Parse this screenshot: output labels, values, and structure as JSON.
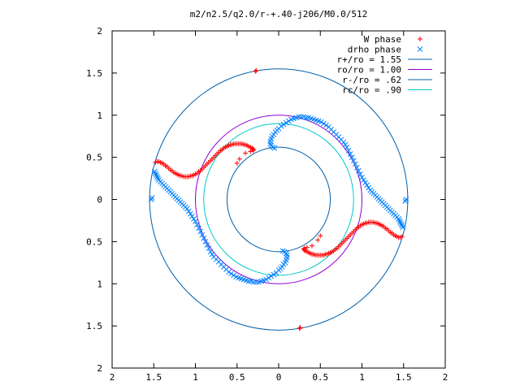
{
  "chart_data": {
    "type": "scatter",
    "title": "m2/n2.5/q2.0/r-+.40-j206/M0.0/512",
    "xlim": [
      -2,
      2
    ],
    "ylim": [
      -2,
      2
    ],
    "xticks": [
      -2,
      -1.5,
      -1,
      -0.5,
      0,
      0.5,
      1,
      1.5,
      2
    ],
    "yticks": [
      -2,
      -1.5,
      -1,
      -0.5,
      0,
      0.5,
      1,
      1.5,
      2
    ],
    "xtick_labels": [
      "2",
      "1.5",
      "1",
      "0.5",
      "0",
      "0.5",
      "1",
      "1.5",
      "2"
    ],
    "ytick_labels": [
      "2",
      "1.5",
      "1",
      "0.5",
      "0",
      "0.5",
      "1",
      "1.5",
      "2"
    ],
    "grid": false,
    "legend_position": "top-right",
    "series": [
      {
        "name": "W phase",
        "kind": "points",
        "marker": "plus",
        "color": "#ff0000",
        "points": [
          [
            -1.48,
            0.44
          ],
          [
            -1.46,
            0.45
          ],
          [
            -1.44,
            0.45
          ],
          [
            -1.42,
            0.44
          ],
          [
            -1.4,
            0.43
          ],
          [
            -1.38,
            0.42
          ],
          [
            -1.36,
            0.4
          ],
          [
            -1.34,
            0.39
          ],
          [
            -1.32,
            0.37
          ],
          [
            -1.3,
            0.35
          ],
          [
            -1.28,
            0.34
          ],
          [
            -1.26,
            0.32
          ],
          [
            -1.24,
            0.31
          ],
          [
            -1.22,
            0.3
          ],
          [
            -1.2,
            0.29
          ],
          [
            -1.18,
            0.28
          ],
          [
            -1.16,
            0.28
          ],
          [
            -1.14,
            0.27
          ],
          [
            -1.12,
            0.27
          ],
          [
            -1.1,
            0.27
          ],
          [
            -1.08,
            0.27
          ],
          [
            -1.06,
            0.28
          ],
          [
            -1.04,
            0.28
          ],
          [
            -1.02,
            0.29
          ],
          [
            -1.0,
            0.3
          ],
          [
            -0.98,
            0.31
          ],
          [
            -0.96,
            0.33
          ],
          [
            -0.94,
            0.34
          ],
          [
            -0.92,
            0.36
          ],
          [
            -0.9,
            0.38
          ],
          [
            -0.88,
            0.4
          ],
          [
            -0.86,
            0.42
          ],
          [
            -0.84,
            0.44
          ],
          [
            -0.82,
            0.46
          ],
          [
            -0.8,
            0.48
          ],
          [
            -0.78,
            0.5
          ],
          [
            -0.76,
            0.52
          ],
          [
            -0.74,
            0.54
          ],
          [
            -0.72,
            0.56
          ],
          [
            -0.7,
            0.58
          ],
          [
            -0.68,
            0.59
          ],
          [
            -0.66,
            0.61
          ],
          [
            -0.64,
            0.62
          ],
          [
            -0.62,
            0.63
          ],
          [
            -0.6,
            0.64
          ],
          [
            -0.58,
            0.65
          ],
          [
            -0.56,
            0.65
          ],
          [
            -0.54,
            0.66
          ],
          [
            -0.52,
            0.66
          ],
          [
            -0.5,
            0.66
          ],
          [
            -0.48,
            0.66
          ],
          [
            -0.46,
            0.66
          ],
          [
            -0.44,
            0.66
          ],
          [
            -0.42,
            0.65
          ],
          [
            -0.4,
            0.65
          ],
          [
            -0.38,
            0.64
          ],
          [
            -0.36,
            0.63
          ],
          [
            -0.34,
            0.62
          ],
          [
            -0.32,
            0.61
          ],
          [
            -0.31,
            0.6
          ],
          [
            -0.3,
            0.59
          ],
          [
            -0.31,
            0.58
          ],
          [
            -0.34,
            0.57
          ],
          [
            -0.4,
            0.55
          ],
          [
            -0.47,
            0.48
          ],
          [
            -0.5,
            0.43
          ],
          [
            -0.28,
            1.52
          ],
          [
            -0.27,
            1.53
          ],
          [
            1.48,
            -0.44
          ],
          [
            1.46,
            -0.45
          ],
          [
            1.44,
            -0.45
          ],
          [
            1.42,
            -0.44
          ],
          [
            1.4,
            -0.43
          ],
          [
            1.38,
            -0.42
          ],
          [
            1.36,
            -0.4
          ],
          [
            1.34,
            -0.39
          ],
          [
            1.32,
            -0.37
          ],
          [
            1.3,
            -0.35
          ],
          [
            1.28,
            -0.34
          ],
          [
            1.26,
            -0.32
          ],
          [
            1.24,
            -0.31
          ],
          [
            1.22,
            -0.3
          ],
          [
            1.2,
            -0.29
          ],
          [
            1.18,
            -0.28
          ],
          [
            1.16,
            -0.28
          ],
          [
            1.14,
            -0.27
          ],
          [
            1.12,
            -0.27
          ],
          [
            1.1,
            -0.27
          ],
          [
            1.08,
            -0.27
          ],
          [
            1.06,
            -0.28
          ],
          [
            1.04,
            -0.28
          ],
          [
            1.02,
            -0.29
          ],
          [
            1.0,
            -0.3
          ],
          [
            0.98,
            -0.31
          ],
          [
            0.96,
            -0.33
          ],
          [
            0.94,
            -0.34
          ],
          [
            0.92,
            -0.36
          ],
          [
            0.9,
            -0.38
          ],
          [
            0.88,
            -0.4
          ],
          [
            0.86,
            -0.42
          ],
          [
            0.84,
            -0.44
          ],
          [
            0.82,
            -0.46
          ],
          [
            0.8,
            -0.48
          ],
          [
            0.78,
            -0.5
          ],
          [
            0.76,
            -0.52
          ],
          [
            0.74,
            -0.54
          ],
          [
            0.72,
            -0.56
          ],
          [
            0.7,
            -0.58
          ],
          [
            0.68,
            -0.59
          ],
          [
            0.66,
            -0.61
          ],
          [
            0.64,
            -0.62
          ],
          [
            0.62,
            -0.63
          ],
          [
            0.6,
            -0.64
          ],
          [
            0.58,
            -0.65
          ],
          [
            0.56,
            -0.65
          ],
          [
            0.54,
            -0.66
          ],
          [
            0.52,
            -0.66
          ],
          [
            0.5,
            -0.66
          ],
          [
            0.48,
            -0.66
          ],
          [
            0.46,
            -0.66
          ],
          [
            0.44,
            -0.66
          ],
          [
            0.42,
            -0.65
          ],
          [
            0.4,
            -0.65
          ],
          [
            0.38,
            -0.64
          ],
          [
            0.36,
            -0.63
          ],
          [
            0.34,
            -0.62
          ],
          [
            0.32,
            -0.61
          ],
          [
            0.31,
            -0.6
          ],
          [
            0.3,
            -0.59
          ],
          [
            0.31,
            -0.58
          ],
          [
            0.34,
            -0.57
          ],
          [
            0.4,
            -0.55
          ],
          [
            0.47,
            -0.48
          ],
          [
            0.5,
            -0.43
          ],
          [
            0.26,
            -1.52
          ],
          [
            0.25,
            -1.53
          ]
        ]
      },
      {
        "name": "drho phase",
        "kind": "points",
        "marker": "cross",
        "color": "#0080ff",
        "points": [
          [
            -1.52,
            0.02
          ],
          [
            -1.53,
            0.0
          ],
          [
            -1.49,
            0.33
          ],
          [
            -1.48,
            0.31
          ],
          [
            -1.47,
            0.29
          ],
          [
            -1.46,
            0.27
          ],
          [
            -1.45,
            0.25
          ],
          [
            -1.44,
            0.23
          ],
          [
            -1.42,
            0.21
          ],
          [
            -1.4,
            0.19
          ],
          [
            -1.38,
            0.17
          ],
          [
            -1.36,
            0.15
          ],
          [
            -1.34,
            0.13
          ],
          [
            -1.32,
            0.11
          ],
          [
            -1.3,
            0.09
          ],
          [
            -1.28,
            0.07
          ],
          [
            -1.26,
            0.05
          ],
          [
            -1.24,
            0.03
          ],
          [
            -1.22,
            0.01
          ],
          [
            -1.2,
            -0.01
          ],
          [
            -1.18,
            -0.03
          ],
          [
            -1.16,
            -0.05
          ],
          [
            -1.14,
            -0.07
          ],
          [
            -1.12,
            -0.09
          ],
          [
            -1.1,
            -0.11
          ],
          [
            -1.08,
            -0.14
          ],
          [
            -1.06,
            -0.17
          ],
          [
            -1.04,
            -0.2
          ],
          [
            -1.02,
            -0.23
          ],
          [
            -1.0,
            -0.26
          ],
          [
            -0.98,
            -0.3
          ],
          [
            -0.96,
            -0.34
          ],
          [
            -0.94,
            -0.38
          ],
          [
            -0.92,
            -0.42
          ],
          [
            -0.9,
            -0.46
          ],
          [
            -0.88,
            -0.5
          ],
          [
            -0.86,
            -0.54
          ],
          [
            -0.84,
            -0.58
          ],
          [
            -0.82,
            -0.62
          ],
          [
            -0.8,
            -0.65
          ],
          [
            -0.78,
            -0.68
          ],
          [
            -0.75,
            -0.71
          ],
          [
            -0.72,
            -0.74
          ],
          [
            -0.69,
            -0.77
          ],
          [
            -0.66,
            -0.8
          ],
          [
            -0.63,
            -0.83
          ],
          [
            -0.6,
            -0.86
          ],
          [
            -0.57,
            -0.88
          ],
          [
            -0.54,
            -0.9
          ],
          [
            -0.51,
            -0.92
          ],
          [
            -0.48,
            -0.93
          ],
          [
            -0.45,
            -0.94
          ],
          [
            -0.42,
            -0.95
          ],
          [
            -0.39,
            -0.96
          ],
          [
            -0.36,
            -0.97
          ],
          [
            -0.33,
            -0.97
          ],
          [
            -0.3,
            -0.98
          ],
          [
            -0.27,
            -0.98
          ],
          [
            -0.24,
            -0.98
          ],
          [
            -0.21,
            -0.97
          ],
          [
            -0.18,
            -0.96
          ],
          [
            -0.15,
            -0.95
          ],
          [
            -0.12,
            -0.93
          ],
          [
            -0.09,
            -0.91
          ],
          [
            -0.06,
            -0.89
          ],
          [
            -0.03,
            -0.87
          ],
          [
            0.0,
            -0.84
          ],
          [
            0.02,
            -0.82
          ],
          [
            0.04,
            -0.8
          ],
          [
            0.06,
            -0.77
          ],
          [
            0.08,
            -0.75
          ],
          [
            0.09,
            -0.72
          ],
          [
            0.1,
            -0.69
          ],
          [
            0.1,
            -0.66
          ],
          [
            0.09,
            -0.64
          ],
          [
            0.07,
            -0.62
          ],
          [
            0.05,
            -0.61
          ],
          [
            1.52,
            -0.02
          ],
          [
            1.53,
            0.0
          ],
          [
            1.49,
            -0.33
          ],
          [
            1.48,
            -0.31
          ],
          [
            1.47,
            -0.29
          ],
          [
            1.46,
            -0.27
          ],
          [
            1.45,
            -0.25
          ],
          [
            1.44,
            -0.23
          ],
          [
            1.42,
            -0.21
          ],
          [
            1.4,
            -0.19
          ],
          [
            1.38,
            -0.17
          ],
          [
            1.36,
            -0.15
          ],
          [
            1.34,
            -0.13
          ],
          [
            1.32,
            -0.11
          ],
          [
            1.3,
            -0.09
          ],
          [
            1.28,
            -0.07
          ],
          [
            1.26,
            -0.05
          ],
          [
            1.24,
            -0.03
          ],
          [
            1.22,
            -0.01
          ],
          [
            1.2,
            0.01
          ],
          [
            1.18,
            0.03
          ],
          [
            1.16,
            0.05
          ],
          [
            1.14,
            0.07
          ],
          [
            1.12,
            0.09
          ],
          [
            1.1,
            0.11
          ],
          [
            1.08,
            0.14
          ],
          [
            1.06,
            0.17
          ],
          [
            1.04,
            0.2
          ],
          [
            1.02,
            0.23
          ],
          [
            1.0,
            0.26
          ],
          [
            0.98,
            0.3
          ],
          [
            0.96,
            0.34
          ],
          [
            0.94,
            0.38
          ],
          [
            0.92,
            0.42
          ],
          [
            0.9,
            0.46
          ],
          [
            0.88,
            0.5
          ],
          [
            0.86,
            0.54
          ],
          [
            0.84,
            0.58
          ],
          [
            0.82,
            0.62
          ],
          [
            0.8,
            0.65
          ],
          [
            0.78,
            0.68
          ],
          [
            0.75,
            0.71
          ],
          [
            0.72,
            0.74
          ],
          [
            0.69,
            0.77
          ],
          [
            0.66,
            0.8
          ],
          [
            0.63,
            0.83
          ],
          [
            0.6,
            0.86
          ],
          [
            0.57,
            0.88
          ],
          [
            0.54,
            0.9
          ],
          [
            0.51,
            0.92
          ],
          [
            0.48,
            0.93
          ],
          [
            0.45,
            0.94
          ],
          [
            0.42,
            0.95
          ],
          [
            0.39,
            0.96
          ],
          [
            0.36,
            0.97
          ],
          [
            0.33,
            0.97
          ],
          [
            0.3,
            0.98
          ],
          [
            0.27,
            0.98
          ],
          [
            0.24,
            0.98
          ],
          [
            0.21,
            0.97
          ],
          [
            0.18,
            0.96
          ],
          [
            0.15,
            0.95
          ],
          [
            0.12,
            0.93
          ],
          [
            0.09,
            0.91
          ],
          [
            0.06,
            0.89
          ],
          [
            0.03,
            0.87
          ],
          [
            0.0,
            0.84
          ],
          [
            -0.02,
            0.82
          ],
          [
            -0.04,
            0.8
          ],
          [
            -0.06,
            0.77
          ],
          [
            -0.08,
            0.75
          ],
          [
            -0.09,
            0.72
          ],
          [
            -0.1,
            0.69
          ],
          [
            -0.1,
            0.66
          ],
          [
            -0.09,
            0.64
          ],
          [
            -0.07,
            0.62
          ],
          [
            -0.05,
            0.61
          ]
        ]
      },
      {
        "name": "r+/ro = 1.55",
        "kind": "circle",
        "radius": 1.55,
        "color": "#0060ad"
      },
      {
        "name": "ro/ro = 1.00",
        "kind": "circle",
        "radius": 1.0,
        "color": "#9400d3"
      },
      {
        "name": "r-/ro = .62",
        "kind": "circle",
        "radius": 0.62,
        "color": "#0060ad"
      },
      {
        "name": "rc/ro = .90",
        "kind": "circle",
        "radius": 0.9,
        "color": "#00c8c8"
      }
    ]
  }
}
